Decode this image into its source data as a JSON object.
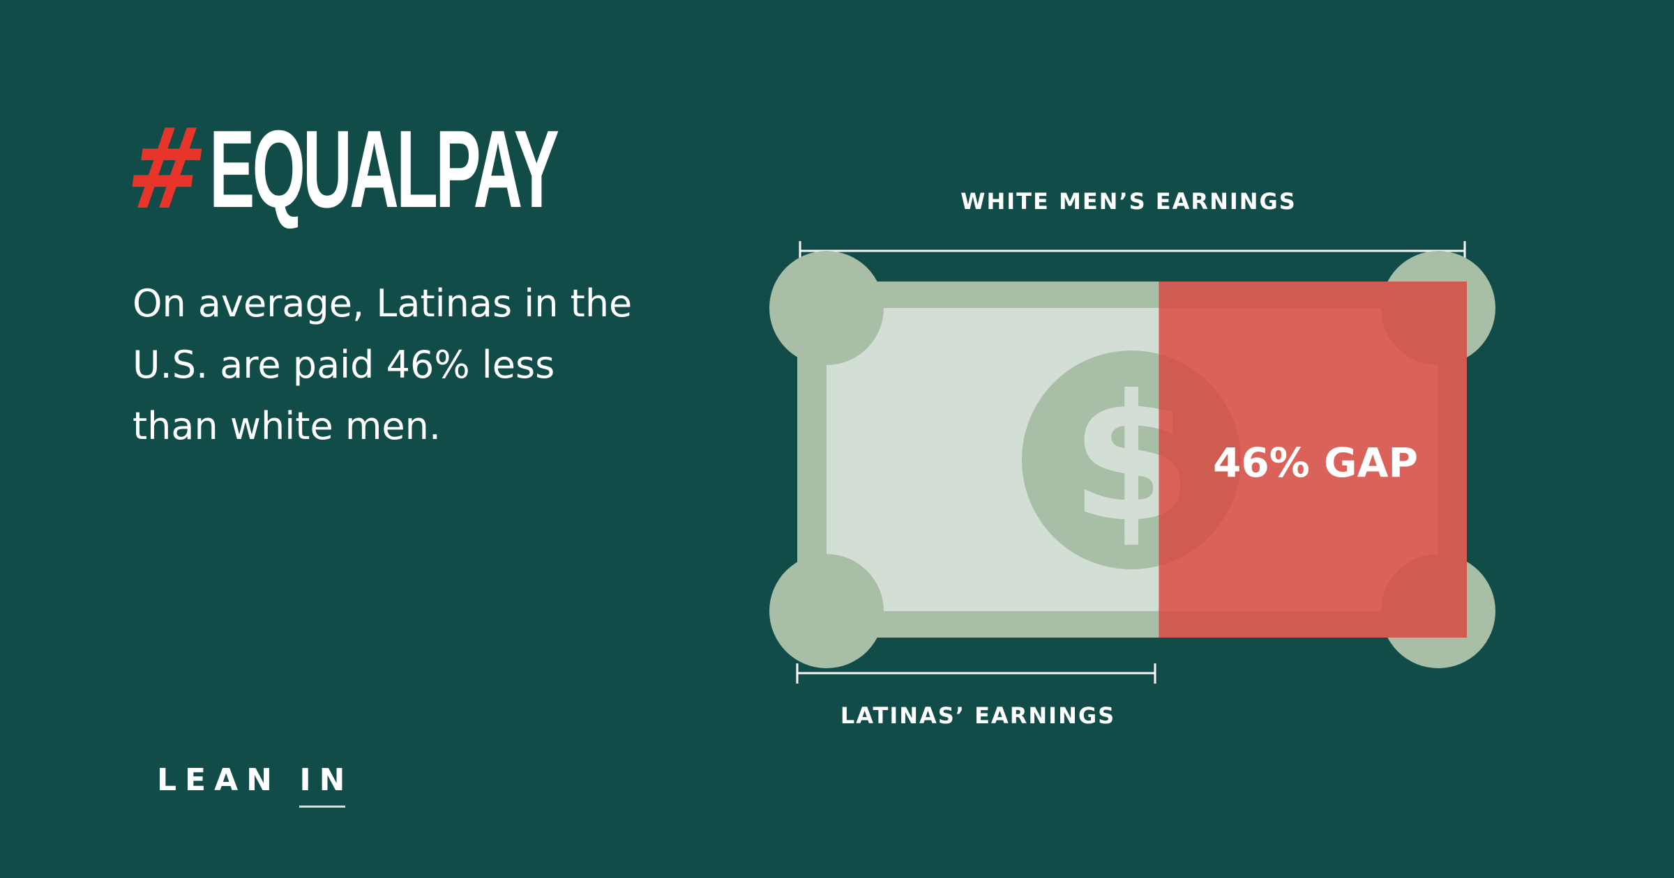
{
  "header": {
    "hash": "#",
    "title": "EQUALPAY"
  },
  "statement": "On average, Latinas in the U.S. are paid 46% less than white men.",
  "chart": {
    "top_label": "WHITE MEN’S EARNINGS",
    "bottom_label": "LATINAS’ EARNINGS",
    "gap_label": "46% GAP",
    "gap_percent": 46,
    "currency_symbol": "$",
    "colors": {
      "background": "#114c48",
      "bill_outer": "#a9bea6",
      "bill_inner": "#d3dfd5",
      "gap_red": "#db403a",
      "hash_red": "#e8352b"
    }
  },
  "logo": {
    "part1": "LEAN",
    "part2": "IN"
  }
}
